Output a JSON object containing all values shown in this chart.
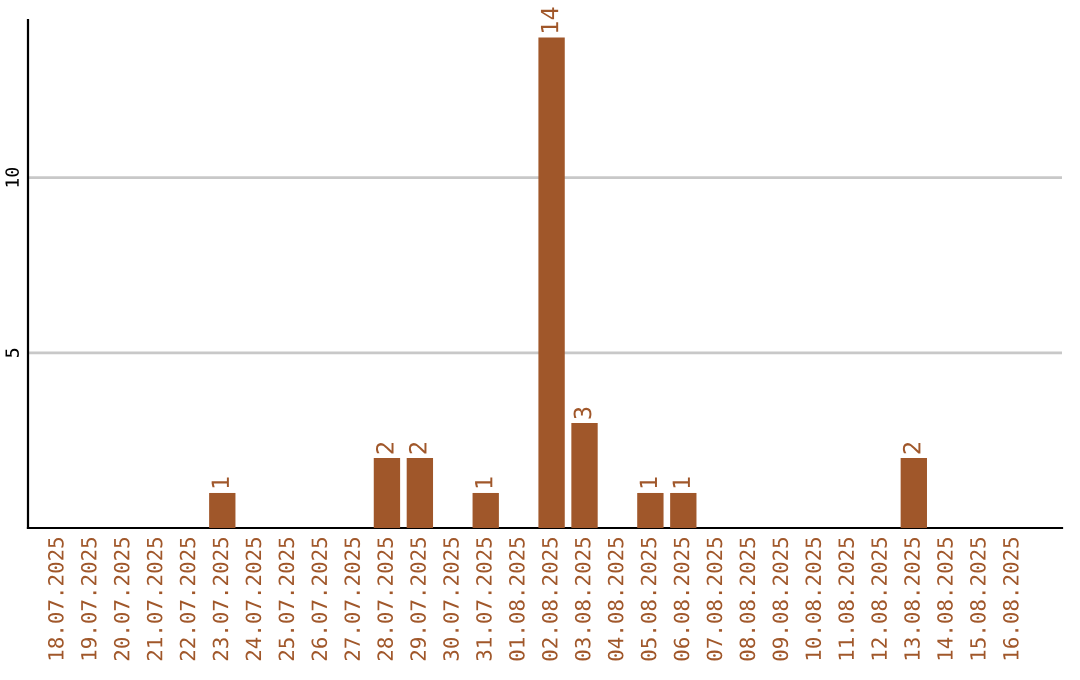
{
  "chart_data": {
    "type": "bar",
    "categories": [
      "18.07.2025",
      "19.07.2025",
      "20.07.2025",
      "21.07.2025",
      "22.07.2025",
      "23.07.2025",
      "24.07.2025",
      "25.07.2025",
      "26.07.2025",
      "27.07.2025",
      "28.07.2025",
      "29.07.2025",
      "30.07.2025",
      "31.07.2025",
      "01.08.2025",
      "02.08.2025",
      "03.08.2025",
      "04.08.2025",
      "05.08.2025",
      "06.08.2025",
      "07.08.2025",
      "08.08.2025",
      "09.08.2025",
      "10.08.2025",
      "11.08.2025",
      "12.08.2025",
      "13.08.2025",
      "14.08.2025",
      "15.08.2025",
      "16.08.2025"
    ],
    "values": [
      0,
      0,
      0,
      0,
      0,
      1,
      0,
      0,
      0,
      0,
      2,
      2,
      0,
      1,
      0,
      14,
      3,
      0,
      1,
      1,
      0,
      0,
      0,
      0,
      0,
      0,
      2,
      0,
      0,
      0
    ],
    "value_labels": [
      null,
      null,
      null,
      null,
      null,
      "1",
      null,
      null,
      null,
      null,
      "2",
      "2",
      null,
      "1",
      null,
      "14",
      "3",
      null,
      "1",
      "1",
      null,
      null,
      null,
      null,
      null,
      null,
      "2",
      null,
      null,
      null
    ],
    "color": "#a0572a",
    "ylim": [
      0,
      14.5
    ],
    "yticks": [
      5,
      10
    ],
    "grid": "y",
    "legend": false
  }
}
